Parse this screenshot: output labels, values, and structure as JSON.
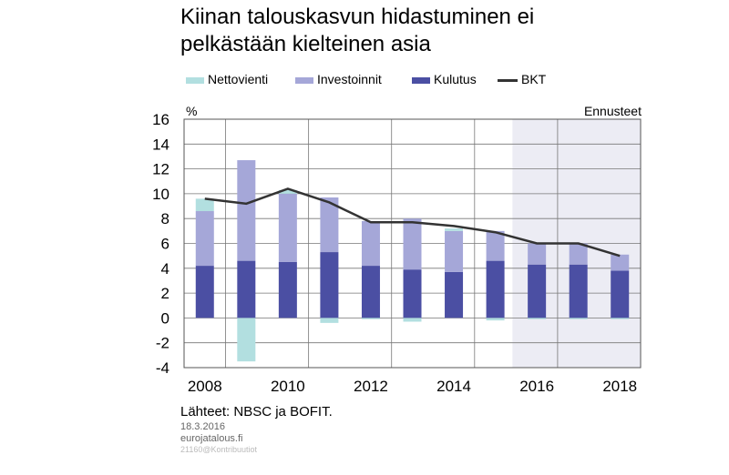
{
  "title_lines": [
    "Kiinan talouskasvun hidastuminen ei",
    "pelkästään kielteinen asia"
  ],
  "legend": {
    "net_exports": "Nettovienti",
    "investment": "Investoinnit",
    "consumption": "Kulutus",
    "gdp": "BKT"
  },
  "colors": {
    "net_exports": "#b2dfe0",
    "investment": "#a5a7d8",
    "consumption": "#4b4fa3",
    "gdp": "#333333",
    "forecast_bg": "#ececf4",
    "grid": "#777777"
  },
  "chart_data": {
    "type": "bar",
    "stacked": true,
    "categories": [
      "2008",
      "2009",
      "2010",
      "2011",
      "2012",
      "2013",
      "2014",
      "2015",
      "2016",
      "2017",
      "2018"
    ],
    "x_tick_labels": [
      "2008",
      "2010",
      "2012",
      "2014",
      "2016",
      "2018"
    ],
    "y_ticks": [
      "16",
      "14",
      "12",
      "10",
      "8",
      "6",
      "4",
      "2",
      "0",
      "-2",
      "-4"
    ],
    "ylim": [
      -4,
      16
    ],
    "y_unit": "%",
    "forecast_label": "Ennusteet",
    "forecast_from": "2016",
    "series": [
      {
        "name": "Kulutus",
        "key": "consumption",
        "values": [
          4.2,
          4.6,
          4.5,
          5.3,
          4.2,
          3.9,
          3.7,
          4.6,
          4.3,
          4.3,
          3.8
        ]
      },
      {
        "name": "Investoinnit",
        "key": "investment",
        "values": [
          4.4,
          8.1,
          5.5,
          4.4,
          3.6,
          4.1,
          3.3,
          2.4,
          1.7,
          1.7,
          1.3
        ]
      },
      {
        "name": "Nettovienti",
        "key": "net_exports",
        "values": [
          1.0,
          -3.5,
          0.3,
          -0.4,
          -0.1,
          -0.3,
          0.2,
          -0.2,
          -0.1,
          -0.1,
          -0.1
        ]
      }
    ],
    "line": {
      "name": "BKT",
      "values": [
        9.6,
        9.2,
        10.4,
        9.3,
        7.7,
        7.7,
        7.4,
        6.9,
        6.0,
        6.0,
        5.0
      ]
    },
    "grid": true
  },
  "footer": {
    "source": "Lähteet: NBSC ja BOFIT.",
    "date": "18.3.2016",
    "site": "eurojatalous.fi",
    "code": "21160@Kontribuutiot"
  }
}
